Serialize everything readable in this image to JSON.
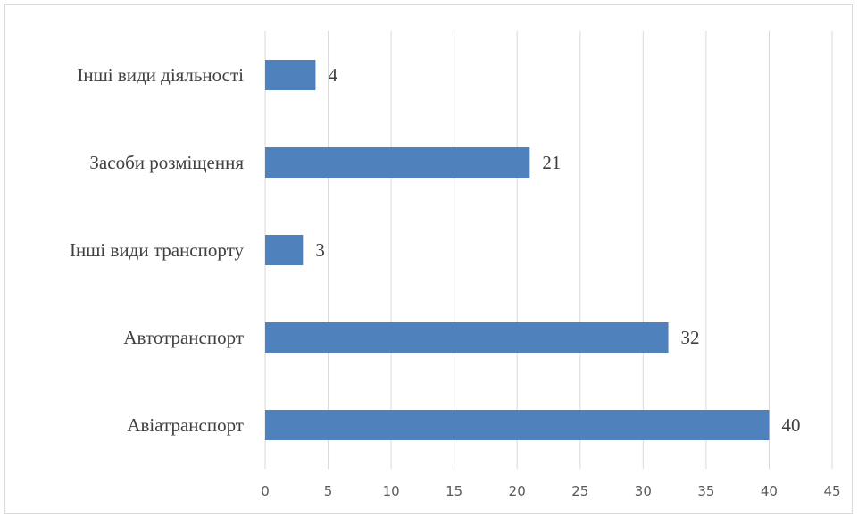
{
  "chart_data": {
    "type": "bar",
    "orientation": "horizontal",
    "categories": [
      "Інші види діяльності",
      "Засоби розміщення",
      "Інші види транспорту",
      "Автотранспорт",
      "Авіатранспорт"
    ],
    "values": [
      4,
      21,
      3,
      32,
      40
    ],
    "xlim": [
      0,
      45
    ],
    "x_ticks": [
      0,
      5,
      10,
      15,
      20,
      25,
      30,
      35,
      40,
      45
    ],
    "grid": "vertical",
    "legend": "none",
    "data_labels": true,
    "bar_color": "#4f81bd",
    "grid_color": "#d9d9d9"
  }
}
